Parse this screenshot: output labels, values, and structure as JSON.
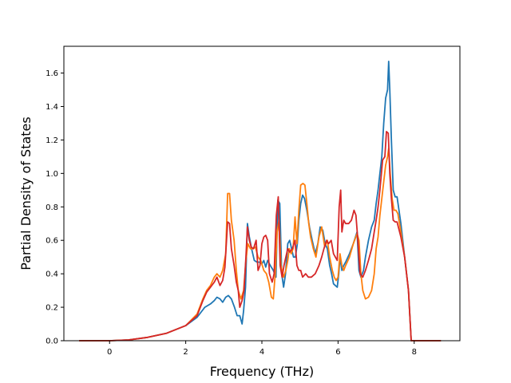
{
  "chart_data": {
    "type": "line",
    "title": "",
    "xlabel": "Frequency (THz)",
    "ylabel": "Partial Density of States",
    "xlim": [
      -1.2,
      9.2
    ],
    "ylim": [
      0.0,
      1.76
    ],
    "xticks": [
      0,
      2,
      4,
      6,
      8
    ],
    "xtick_labels": [
      "0",
      "2",
      "4",
      "6",
      "8"
    ],
    "yticks": [
      0.0,
      0.2,
      0.4,
      0.6,
      0.8,
      1.0,
      1.2,
      1.4,
      1.6
    ],
    "ytick_labels": [
      "0.0",
      "0.2",
      "0.4",
      "0.6",
      "0.8",
      "1.0",
      "1.2",
      "1.4",
      "1.6"
    ],
    "grid": false,
    "legend": "none",
    "series": [
      {
        "color": "#1f77b4",
        "points": [
          [
            -0.8,
            0.0
          ],
          [
            0.0,
            0.0
          ],
          [
            0.5,
            0.005
          ],
          [
            1.0,
            0.02
          ],
          [
            1.5,
            0.045
          ],
          [
            2.0,
            0.09
          ],
          [
            2.3,
            0.14
          ],
          [
            2.5,
            0.2
          ],
          [
            2.65,
            0.22
          ],
          [
            2.75,
            0.24
          ],
          [
            2.82,
            0.26
          ],
          [
            2.9,
            0.25
          ],
          [
            2.97,
            0.23
          ],
          [
            3.05,
            0.26
          ],
          [
            3.12,
            0.27
          ],
          [
            3.2,
            0.25
          ],
          [
            3.28,
            0.2
          ],
          [
            3.35,
            0.15
          ],
          [
            3.42,
            0.15
          ],
          [
            3.48,
            0.1
          ],
          [
            3.52,
            0.18
          ],
          [
            3.57,
            0.32
          ],
          [
            3.62,
            0.7
          ],
          [
            3.67,
            0.62
          ],
          [
            3.73,
            0.55
          ],
          [
            3.8,
            0.48
          ],
          [
            3.87,
            0.47
          ],
          [
            3.93,
            0.47
          ],
          [
            4.0,
            0.46
          ],
          [
            4.05,
            0.48
          ],
          [
            4.1,
            0.44
          ],
          [
            4.15,
            0.48
          ],
          [
            4.22,
            0.45
          ],
          [
            4.3,
            0.42
          ],
          [
            4.37,
            0.38
          ],
          [
            4.42,
            0.84
          ],
          [
            4.47,
            0.82
          ],
          [
            4.52,
            0.4
          ],
          [
            4.57,
            0.32
          ],
          [
            4.62,
            0.4
          ],
          [
            4.68,
            0.58
          ],
          [
            4.73,
            0.6
          ],
          [
            4.78,
            0.55
          ],
          [
            4.83,
            0.5
          ],
          [
            4.88,
            0.5
          ],
          [
            4.93,
            0.58
          ],
          [
            4.97,
            0.72
          ],
          [
            5.02,
            0.82
          ],
          [
            5.07,
            0.87
          ],
          [
            5.12,
            0.85
          ],
          [
            5.18,
            0.78
          ],
          [
            5.25,
            0.68
          ],
          [
            5.32,
            0.6
          ],
          [
            5.4,
            0.52
          ],
          [
            5.47,
            0.58
          ],
          [
            5.53,
            0.68
          ],
          [
            5.6,
            0.66
          ],
          [
            5.66,
            0.58
          ],
          [
            5.72,
            0.55
          ],
          [
            5.78,
            0.45
          ],
          [
            5.83,
            0.4
          ],
          [
            5.88,
            0.34
          ],
          [
            5.93,
            0.33
          ],
          [
            5.98,
            0.32
          ],
          [
            6.02,
            0.4
          ],
          [
            6.05,
            0.5
          ],
          [
            6.1,
            0.42
          ],
          [
            6.15,
            0.45
          ],
          [
            6.2,
            0.47
          ],
          [
            6.3,
            0.52
          ],
          [
            6.4,
            0.58
          ],
          [
            6.5,
            0.65
          ],
          [
            6.55,
            0.42
          ],
          [
            6.6,
            0.38
          ],
          [
            6.67,
            0.42
          ],
          [
            6.72,
            0.5
          ],
          [
            6.8,
            0.6
          ],
          [
            6.88,
            0.68
          ],
          [
            6.95,
            0.72
          ],
          [
            7.0,
            0.82
          ],
          [
            7.05,
            0.9
          ],
          [
            7.1,
            1.0
          ],
          [
            7.15,
            1.1
          ],
          [
            7.2,
            1.3
          ],
          [
            7.25,
            1.45
          ],
          [
            7.3,
            1.5
          ],
          [
            7.33,
            1.67
          ],
          [
            7.36,
            1.5
          ],
          [
            7.4,
            1.2
          ],
          [
            7.45,
            0.9
          ],
          [
            7.5,
            0.86
          ],
          [
            7.55,
            0.86
          ],
          [
            7.65,
            0.7
          ],
          [
            7.75,
            0.5
          ],
          [
            7.85,
            0.3
          ],
          [
            7.92,
            0.0
          ],
          [
            8.0,
            0.0
          ],
          [
            8.7,
            0.0
          ]
        ]
      },
      {
        "color": "#ff7f0e",
        "points": [
          [
            -0.8,
            0.0
          ],
          [
            0.0,
            0.0
          ],
          [
            0.5,
            0.005
          ],
          [
            1.0,
            0.02
          ],
          [
            1.5,
            0.045
          ],
          [
            2.0,
            0.09
          ],
          [
            2.3,
            0.16
          ],
          [
            2.45,
            0.25
          ],
          [
            2.55,
            0.3
          ],
          [
            2.65,
            0.33
          ],
          [
            2.75,
            0.38
          ],
          [
            2.82,
            0.4
          ],
          [
            2.9,
            0.38
          ],
          [
            2.97,
            0.42
          ],
          [
            3.05,
            0.52
          ],
          [
            3.1,
            0.88
          ],
          [
            3.15,
            0.88
          ],
          [
            3.2,
            0.72
          ],
          [
            3.27,
            0.6
          ],
          [
            3.33,
            0.42
          ],
          [
            3.38,
            0.3
          ],
          [
            3.45,
            0.25
          ],
          [
            3.52,
            0.3
          ],
          [
            3.58,
            0.48
          ],
          [
            3.63,
            0.58
          ],
          [
            3.7,
            0.55
          ],
          [
            3.77,
            0.55
          ],
          [
            3.83,
            0.56
          ],
          [
            3.9,
            0.5
          ],
          [
            3.97,
            0.48
          ],
          [
            4.05,
            0.42
          ],
          [
            4.12,
            0.4
          ],
          [
            4.18,
            0.35
          ],
          [
            4.25,
            0.26
          ],
          [
            4.3,
            0.25
          ],
          [
            4.35,
            0.4
          ],
          [
            4.4,
            0.65
          ],
          [
            4.45,
            0.72
          ],
          [
            4.5,
            0.45
          ],
          [
            4.57,
            0.38
          ],
          [
            4.63,
            0.42
          ],
          [
            4.68,
            0.48
          ],
          [
            4.72,
            0.55
          ],
          [
            4.77,
            0.52
          ],
          [
            4.82,
            0.55
          ],
          [
            4.87,
            0.74
          ],
          [
            4.92,
            0.58
          ],
          [
            4.97,
            0.78
          ],
          [
            5.02,
            0.93
          ],
          [
            5.08,
            0.94
          ],
          [
            5.13,
            0.93
          ],
          [
            5.18,
            0.82
          ],
          [
            5.23,
            0.7
          ],
          [
            5.28,
            0.62
          ],
          [
            5.35,
            0.55
          ],
          [
            5.42,
            0.5
          ],
          [
            5.5,
            0.62
          ],
          [
            5.57,
            0.68
          ],
          [
            5.65,
            0.56
          ],
          [
            5.72,
            0.6
          ],
          [
            5.78,
            0.5
          ],
          [
            5.85,
            0.42
          ],
          [
            5.9,
            0.38
          ],
          [
            5.95,
            0.36
          ],
          [
            6.0,
            0.38
          ],
          [
            6.05,
            0.52
          ],
          [
            6.1,
            0.45
          ],
          [
            6.15,
            0.42
          ],
          [
            6.2,
            0.45
          ],
          [
            6.3,
            0.5
          ],
          [
            6.4,
            0.58
          ],
          [
            6.5,
            0.64
          ],
          [
            6.55,
            0.6
          ],
          [
            6.6,
            0.4
          ],
          [
            6.65,
            0.3
          ],
          [
            6.72,
            0.25
          ],
          [
            6.8,
            0.26
          ],
          [
            6.88,
            0.3
          ],
          [
            6.95,
            0.4
          ],
          [
            7.0,
            0.55
          ],
          [
            7.05,
            0.62
          ],
          [
            7.1,
            0.75
          ],
          [
            7.15,
            0.85
          ],
          [
            7.2,
            0.95
          ],
          [
            7.25,
            1.05
          ],
          [
            7.3,
            1.1
          ],
          [
            7.33,
            1.15
          ],
          [
            7.37,
            1.0
          ],
          [
            7.42,
            0.85
          ],
          [
            7.47,
            0.78
          ],
          [
            7.52,
            0.78
          ],
          [
            7.57,
            0.76
          ],
          [
            7.65,
            0.65
          ],
          [
            7.75,
            0.5
          ],
          [
            7.85,
            0.3
          ],
          [
            7.92,
            0.0
          ],
          [
            8.0,
            0.0
          ],
          [
            8.7,
            0.0
          ]
        ]
      },
      {
        "color": "#d62728",
        "points": [
          [
            -0.8,
            0.0
          ],
          [
            0.0,
            0.0
          ],
          [
            0.5,
            0.005
          ],
          [
            1.0,
            0.02
          ],
          [
            1.5,
            0.045
          ],
          [
            2.0,
            0.09
          ],
          [
            2.3,
            0.15
          ],
          [
            2.45,
            0.24
          ],
          [
            2.55,
            0.29
          ],
          [
            2.65,
            0.32
          ],
          [
            2.75,
            0.35
          ],
          [
            2.82,
            0.38
          ],
          [
            2.9,
            0.33
          ],
          [
            2.97,
            0.36
          ],
          [
            3.03,
            0.44
          ],
          [
            3.1,
            0.71
          ],
          [
            3.15,
            0.7
          ],
          [
            3.2,
            0.55
          ],
          [
            3.27,
            0.45
          ],
          [
            3.33,
            0.35
          ],
          [
            3.38,
            0.3
          ],
          [
            3.42,
            0.2
          ],
          [
            3.48,
            0.24
          ],
          [
            3.53,
            0.3
          ],
          [
            3.58,
            0.5
          ],
          [
            3.62,
            0.68
          ],
          [
            3.67,
            0.6
          ],
          [
            3.72,
            0.56
          ],
          [
            3.78,
            0.55
          ],
          [
            3.85,
            0.6
          ],
          [
            3.9,
            0.42
          ],
          [
            3.95,
            0.45
          ],
          [
            4.0,
            0.58
          ],
          [
            4.05,
            0.62
          ],
          [
            4.1,
            0.63
          ],
          [
            4.15,
            0.6
          ],
          [
            4.2,
            0.4
          ],
          [
            4.27,
            0.35
          ],
          [
            4.32,
            0.4
          ],
          [
            4.38,
            0.75
          ],
          [
            4.43,
            0.86
          ],
          [
            4.48,
            0.45
          ],
          [
            4.53,
            0.38
          ],
          [
            4.58,
            0.45
          ],
          [
            4.63,
            0.5
          ],
          [
            4.68,
            0.55
          ],
          [
            4.73,
            0.53
          ],
          [
            4.8,
            0.55
          ],
          [
            4.87,
            0.6
          ],
          [
            4.92,
            0.45
          ],
          [
            4.97,
            0.42
          ],
          [
            5.02,
            0.42
          ],
          [
            5.07,
            0.38
          ],
          [
            5.15,
            0.4
          ],
          [
            5.22,
            0.38
          ],
          [
            5.3,
            0.38
          ],
          [
            5.4,
            0.4
          ],
          [
            5.5,
            0.45
          ],
          [
            5.57,
            0.5
          ],
          [
            5.63,
            0.55
          ],
          [
            5.7,
            0.6
          ],
          [
            5.75,
            0.58
          ],
          [
            5.82,
            0.6
          ],
          [
            5.88,
            0.52
          ],
          [
            5.93,
            0.5
          ],
          [
            5.98,
            0.48
          ],
          [
            6.03,
            0.8
          ],
          [
            6.07,
            0.9
          ],
          [
            6.1,
            0.65
          ],
          [
            6.15,
            0.72
          ],
          [
            6.2,
            0.7
          ],
          [
            6.28,
            0.7
          ],
          [
            6.35,
            0.72
          ],
          [
            6.42,
            0.78
          ],
          [
            6.47,
            0.75
          ],
          [
            6.52,
            0.6
          ],
          [
            6.58,
            0.4
          ],
          [
            6.65,
            0.38
          ],
          [
            6.72,
            0.42
          ],
          [
            6.8,
            0.48
          ],
          [
            6.88,
            0.55
          ],
          [
            6.95,
            0.65
          ],
          [
            7.0,
            0.72
          ],
          [
            7.05,
            0.8
          ],
          [
            7.1,
            0.9
          ],
          [
            7.17,
            1.08
          ],
          [
            7.23,
            1.1
          ],
          [
            7.27,
            1.25
          ],
          [
            7.32,
            1.24
          ],
          [
            7.36,
            1.0
          ],
          [
            7.4,
            0.85
          ],
          [
            7.45,
            0.72
          ],
          [
            7.5,
            0.71
          ],
          [
            7.55,
            0.71
          ],
          [
            7.65,
            0.62
          ],
          [
            7.75,
            0.5
          ],
          [
            7.85,
            0.3
          ],
          [
            7.92,
            0.0
          ],
          [
            8.0,
            0.0
          ],
          [
            8.7,
            0.0
          ]
        ]
      }
    ]
  }
}
